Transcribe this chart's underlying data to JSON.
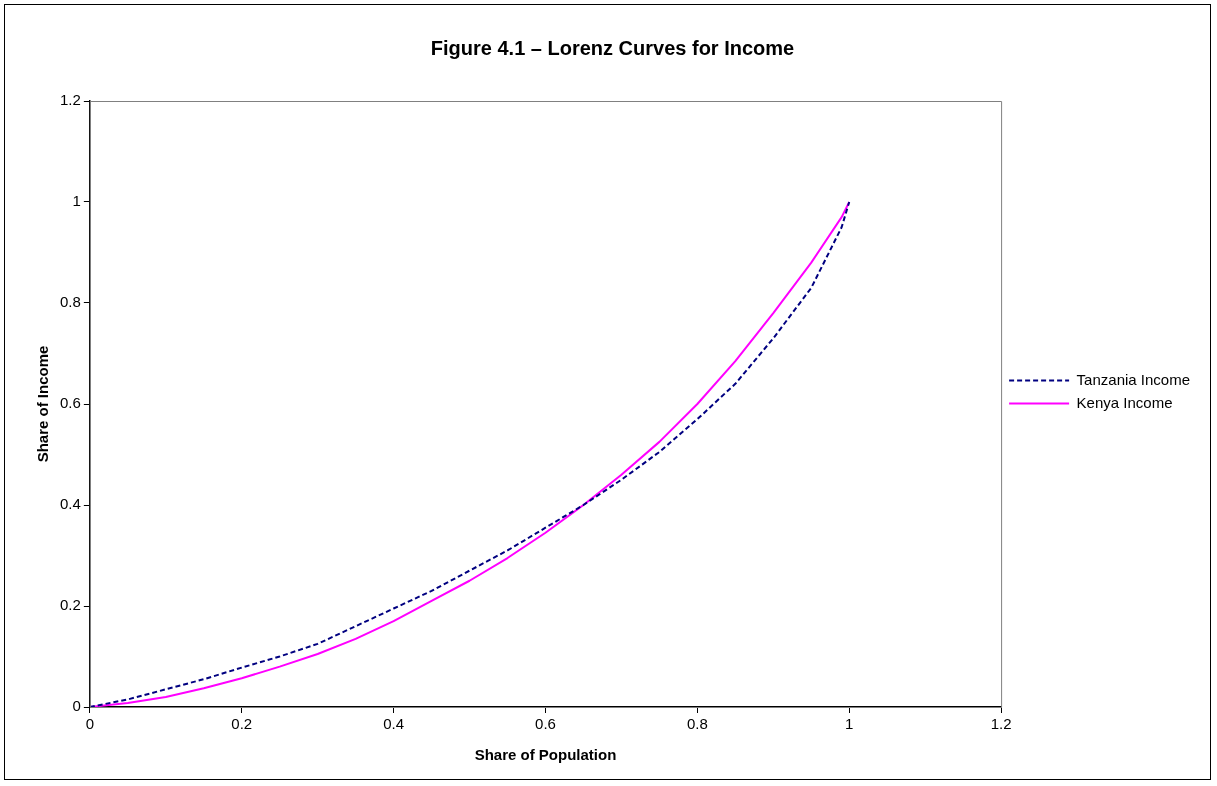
{
  "chart_data": {
    "type": "line",
    "title": "Figure 4.1 – Lorenz Curves for Income",
    "xlabel": "Share of Population",
    "ylabel": "Share of Income",
    "x": [
      0,
      0.05,
      0.1,
      0.15,
      0.2,
      0.25,
      0.3,
      0.35,
      0.4,
      0.45,
      0.5,
      0.55,
      0.6,
      0.65,
      0.7,
      0.75,
      0.8,
      0.85,
      0.9,
      0.95,
      0.99,
      1
    ],
    "series": [
      {
        "name": "Tanzania Income",
        "color": "#000080",
        "line_style": "dashed",
        "values": [
          0,
          0.015,
          0.035,
          0.055,
          0.078,
          0.1,
          0.125,
          0.16,
          0.195,
          0.23,
          0.27,
          0.31,
          0.355,
          0.4,
          0.45,
          0.505,
          0.57,
          0.64,
          0.73,
          0.83,
          0.95,
          1
        ]
      },
      {
        "name": "Kenya Income",
        "color": "#ff00ff",
        "line_style": "solid",
        "values": [
          0,
          0.008,
          0.02,
          0.037,
          0.057,
          0.08,
          0.105,
          0.135,
          0.17,
          0.21,
          0.25,
          0.295,
          0.345,
          0.4,
          0.46,
          0.525,
          0.6,
          0.685,
          0.78,
          0.88,
          0.97,
          1
        ]
      }
    ],
    "xlim": [
      0,
      1.2
    ],
    "xticks": [
      0,
      0.2,
      0.4,
      0.6,
      0.8,
      1,
      1.2
    ],
    "ylim": [
      0,
      1.2
    ],
    "yticks": [
      0,
      0.2,
      0.4,
      0.6,
      0.8,
      1,
      1.2
    ],
    "grid": false,
    "legend": "right",
    "marker": "none"
  }
}
